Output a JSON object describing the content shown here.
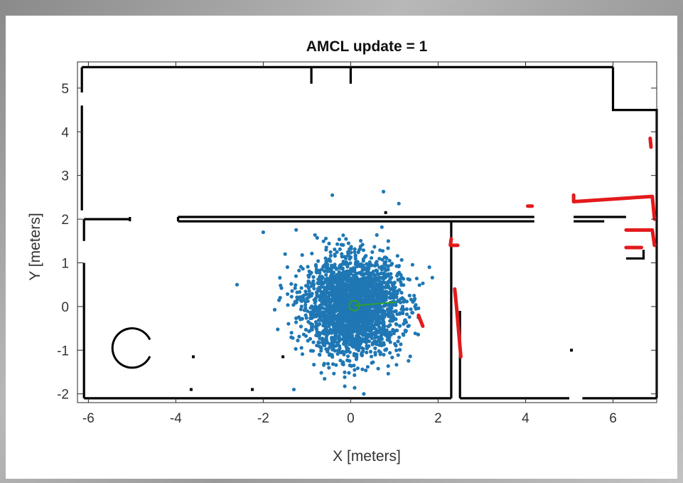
{
  "chart_data": {
    "type": "scatter",
    "title": "AMCL update = 1",
    "xlabel": "X [meters]",
    "ylabel": "Y [meters]",
    "xlim": [
      -6.25,
      7.0
    ],
    "ylim": [
      -2.2,
      5.6
    ],
    "xticks": [
      -6,
      -4,
      -2,
      0,
      2,
      4,
      6
    ],
    "yticks": [
      -2,
      -1,
      0,
      1,
      2,
      3,
      4,
      5
    ],
    "xtick_labels": [
      "-6",
      "-4",
      "-2",
      "0",
      "2",
      "4",
      "6"
    ],
    "ytick_labels": [
      "-2",
      "-1",
      "0",
      "1",
      "2",
      "3",
      "4",
      "5"
    ],
    "grid": false,
    "legend": "none",
    "series": [
      {
        "role": "particles",
        "color": "#1f77b4",
        "cluster": {
          "center": [
            0.05,
            0.0
          ],
          "spread_x": 0.55,
          "spread_y": 0.55,
          "count": 2500
        },
        "outliers": [
          [
            -0.42,
            2.55
          ],
          [
            0.75,
            2.63
          ],
          [
            -2.6,
            0.5
          ],
          [
            -2.0,
            1.7
          ],
          [
            1.55,
            -0.25
          ],
          [
            1.45,
            0.25
          ],
          [
            -1.3,
            -1.9
          ],
          [
            0.3,
            -2.0
          ],
          [
            1.8,
            0.9
          ],
          [
            -1.5,
            1.2
          ]
        ]
      },
      {
        "role": "estimated-pose",
        "color": "#2ca02c",
        "position": [
          0.08,
          0.02
        ],
        "heading_to": [
          1.05,
          0.1
        ]
      },
      {
        "role": "laser-scan-hits",
        "color": "#e31a1c",
        "segments": [
          [
            [
              6.85,
              3.85
            ],
            [
              6.87,
              3.65
            ]
          ],
          [
            [
              5.1,
              2.55
            ],
            [
              5.1,
              2.4
            ],
            [
              6.9,
              2.52
            ],
            [
              6.95,
              2.0
            ]
          ],
          [
            [
              4.05,
              2.3
            ],
            [
              4.15,
              2.3
            ]
          ],
          [
            [
              6.3,
              1.75
            ],
            [
              6.9,
              1.75
            ],
            [
              6.95,
              1.4
            ]
          ],
          [
            [
              6.3,
              1.35
            ],
            [
              6.65,
              1.35
            ]
          ],
          [
            [
              2.3,
              1.55
            ],
            [
              2.28,
              1.4
            ],
            [
              2.45,
              1.4
            ]
          ],
          [
            [
              2.38,
              0.4
            ],
            [
              2.42,
              0.0
            ],
            [
              2.52,
              -1.15
            ]
          ],
          [
            [
              1.55,
              -0.2
            ],
            [
              1.65,
              -0.45
            ]
          ]
        ]
      },
      {
        "role": "map-walls",
        "color": "#000000",
        "segments": [
          [
            [
              -6.15,
              5.48
            ],
            [
              6.0,
              5.48
            ]
          ],
          [
            [
              -6.15,
              5.48
            ],
            [
              -6.15,
              4.9
            ]
          ],
          [
            [
              -6.15,
              4.6
            ],
            [
              -6.15,
              2.2
            ]
          ],
          [
            [
              6.0,
              5.48
            ],
            [
              6.0,
              4.5
            ],
            [
              7.0,
              4.5
            ],
            [
              7.0,
              -2.1
            ]
          ],
          [
            [
              -6.1,
              2.0
            ],
            [
              -5.05,
              2.0
            ]
          ],
          [
            [
              -5.05,
              2.05
            ],
            [
              -5.05,
              1.95
            ]
          ],
          [
            [
              -3.95,
              2.05
            ],
            [
              -3.95,
              1.95
            ]
          ],
          [
            [
              -3.95,
              2.05
            ],
            [
              4.2,
              2.05
            ]
          ],
          [
            [
              -3.95,
              1.95
            ],
            [
              4.2,
              1.95
            ]
          ],
          [
            [
              5.1,
              2.05
            ],
            [
              6.3,
              2.05
            ]
          ],
          [
            [
              5.1,
              1.95
            ],
            [
              5.8,
              1.95
            ]
          ],
          [
            [
              -6.1,
              2.0
            ],
            [
              -6.1,
              1.5
            ]
          ],
          [
            [
              -6.1,
              1.0
            ],
            [
              -6.1,
              -2.1
            ]
          ],
          [
            [
              -6.1,
              -2.1
            ],
            [
              2.3,
              -2.1
            ]
          ],
          [
            [
              2.3,
              1.95
            ],
            [
              2.3,
              -2.1
            ]
          ],
          [
            [
              2.5,
              -0.1
            ],
            [
              2.5,
              -2.1
            ]
          ],
          [
            [
              2.5,
              -2.1
            ],
            [
              5.0,
              -2.1
            ]
          ],
          [
            [
              5.3,
              -2.1
            ],
            [
              7.0,
              -2.1
            ]
          ],
          [
            [
              -0.9,
              5.48
            ],
            [
              -0.9,
              5.1
            ]
          ],
          [
            [
              0.0,
              5.48
            ],
            [
              0.0,
              5.1
            ]
          ],
          [
            [
              6.3,
              1.1
            ],
            [
              6.7,
              1.1
            ],
            [
              6.7,
              1.3
            ]
          ]
        ],
        "arc": {
          "center": [
            -5.0,
            -0.95
          ],
          "radius": 0.45,
          "start_deg": 25,
          "end_deg": 335
        },
        "specks": [
          [
            -3.6,
            -1.15
          ],
          [
            -1.55,
            -1.15
          ],
          [
            -3.65,
            -1.9
          ],
          [
            -2.25,
            -1.9
          ],
          [
            5.05,
            -1.0
          ],
          [
            0.8,
            2.15
          ]
        ]
      }
    ]
  }
}
